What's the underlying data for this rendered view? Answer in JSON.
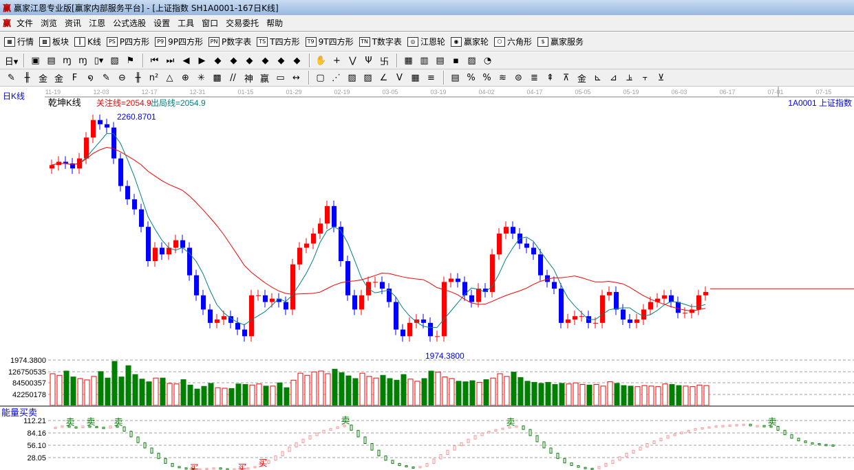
{
  "window": {
    "title": "赢家江恩专业版[赢家内部服务平台] - [上证指数  SH1A0001-167日K线]",
    "logo": "赢"
  },
  "menu": {
    "logo": "赢",
    "items": [
      "文件",
      "浏览",
      "资讯",
      "江恩",
      "公式选股",
      "设置",
      "工具",
      "窗口",
      "交易委托",
      "帮助"
    ]
  },
  "toolbar1": [
    {
      "icon": "grid-table-icon",
      "glyph": "▦",
      "label": "行情"
    },
    {
      "icon": "blocks-icon",
      "glyph": "▩",
      "label": "板块"
    },
    {
      "icon": "candles-icon",
      "glyph": "┃",
      "label": "K线"
    },
    {
      "icon": "ps-icon",
      "glyph": "PS",
      "label": "P四方形"
    },
    {
      "icon": "p9-icon",
      "glyph": "P9",
      "label": "9P四方形"
    },
    {
      "icon": "pn-icon",
      "glyph": "PN",
      "label": "P数字表"
    },
    {
      "icon": "ts-icon",
      "glyph": "TS",
      "label": "T四方形"
    },
    {
      "icon": "t9-icon",
      "glyph": "T9",
      "label": "9T四方形"
    },
    {
      "icon": "tn-icon",
      "glyph": "TN",
      "label": "T数字表"
    },
    {
      "icon": "gann-wheel-icon",
      "glyph": "◎",
      "label": "江恩轮"
    },
    {
      "icon": "winner-wheel-icon",
      "glyph": "◉",
      "label": "赢家轮"
    },
    {
      "icon": "hexagon-icon",
      "glyph": "⬡",
      "label": "六角形"
    },
    {
      "icon": "dollar-icon",
      "glyph": "$",
      "label": "赢家服务"
    }
  ],
  "toolbar2": [
    {
      "icon": "period-day-icon",
      "glyph": "日▾"
    },
    {
      "icon": "sep"
    },
    {
      "icon": "layout-icon",
      "glyph": "▣"
    },
    {
      "icon": "clipboard-icon",
      "glyph": "▤"
    },
    {
      "icon": "chart-3-icon",
      "glyph": "ɱ"
    },
    {
      "icon": "chart-9-icon",
      "glyph": "ɱ"
    },
    {
      "icon": "candle-type-icon",
      "glyph": "▯▾"
    },
    {
      "icon": "map-icon",
      "glyph": "▧"
    },
    {
      "icon": "flag-icon",
      "glyph": "⚑"
    },
    {
      "icon": "sep"
    },
    {
      "icon": "first-icon",
      "glyph": "⏮"
    },
    {
      "icon": "last-icon",
      "glyph": "⏭"
    },
    {
      "icon": "prev-icon",
      "glyph": "◀"
    },
    {
      "icon": "next-icon",
      "glyph": "▶"
    },
    {
      "icon": "left-diamond-icon",
      "glyph": "◆"
    },
    {
      "icon": "right-diamond-icon",
      "glyph": "◆"
    },
    {
      "icon": "expand-h-icon",
      "glyph": "◆"
    },
    {
      "icon": "shrink-icon",
      "glyph": "◆"
    },
    {
      "icon": "expand-v-icon",
      "glyph": "◆"
    },
    {
      "icon": "expand-all-icon",
      "glyph": "◆"
    },
    {
      "icon": "sep"
    },
    {
      "icon": "hand-icon",
      "glyph": "✋"
    },
    {
      "icon": "crosshair-icon",
      "glyph": "+"
    },
    {
      "icon": "draw-line-icon",
      "glyph": "⋁"
    },
    {
      "icon": "formula-icon",
      "glyph": "Ψ"
    },
    {
      "icon": "pattern-icon",
      "glyph": "卐"
    },
    {
      "icon": "sep"
    },
    {
      "icon": "calendar-icon",
      "glyph": "▦"
    },
    {
      "icon": "calculator-icon",
      "glyph": "▥"
    },
    {
      "icon": "book-icon",
      "glyph": "▤"
    },
    {
      "icon": "save-icon",
      "glyph": "▪"
    },
    {
      "icon": "toolbox-icon",
      "glyph": "▨"
    },
    {
      "icon": "pie-icon",
      "glyph": "◔"
    }
  ],
  "toolbar3": [
    {
      "icon": "pen-icon",
      "glyph": "✎"
    },
    {
      "icon": "lines-icon",
      "glyph": "╫"
    },
    {
      "icon": "gold-line-icon",
      "glyph": "金"
    },
    {
      "icon": "gold-line-2-icon",
      "glyph": "金"
    },
    {
      "icon": "f-line-icon",
      "glyph": "F"
    },
    {
      "icon": "spiral-icon",
      "glyph": "໑"
    },
    {
      "icon": "pen-2-icon",
      "glyph": "✎"
    },
    {
      "icon": "circle-icon",
      "glyph": "⊖"
    },
    {
      "icon": "parallel-icon",
      "glyph": "╫"
    },
    {
      "icon": "n2-icon",
      "glyph": "n²"
    },
    {
      "icon": "triangle-icon",
      "glyph": "△"
    },
    {
      "icon": "target-icon",
      "glyph": "⊕"
    },
    {
      "icon": "web-icon",
      "glyph": "✳"
    },
    {
      "icon": "square-web-icon",
      "glyph": "▩"
    },
    {
      "icon": "speed-icon",
      "glyph": "//"
    },
    {
      "icon": "shen-icon",
      "glyph": "神"
    },
    {
      "icon": "ying-icon",
      "glyph": "赢"
    },
    {
      "icon": "ruler-icon",
      "glyph": "▭"
    },
    {
      "icon": "measure-icon",
      "glyph": "↔"
    },
    {
      "icon": "sep"
    },
    {
      "icon": "box-icon",
      "glyph": "▢"
    },
    {
      "icon": "fan-icon",
      "glyph": "⋰"
    },
    {
      "icon": "square-fan-icon",
      "glyph": "▨"
    },
    {
      "icon": "square-fan-2-icon",
      "glyph": "▨"
    },
    {
      "icon": "angle-icon",
      "glyph": "∠"
    },
    {
      "icon": "v-icon",
      "glyph": "V"
    },
    {
      "icon": "grid-icon",
      "glyph": "▦"
    },
    {
      "icon": "eq-icon",
      "glyph": "≡"
    },
    {
      "icon": "sep"
    },
    {
      "icon": "table-icon",
      "glyph": "▤"
    },
    {
      "icon": "percent-line-icon",
      "glyph": "%"
    },
    {
      "icon": "percent-icon",
      "glyph": "%"
    },
    {
      "icon": "icon-a",
      "glyph": "≋"
    },
    {
      "icon": "icon-b",
      "glyph": "⊜"
    },
    {
      "icon": "icon-c",
      "glyph": "≣"
    },
    {
      "icon": "icon-d",
      "glyph": "⇞"
    },
    {
      "icon": "icon-e",
      "glyph": "⊼"
    },
    {
      "icon": "icon-f",
      "glyph": "金"
    },
    {
      "icon": "icon-g",
      "glyph": "⊾"
    },
    {
      "icon": "icon-h",
      "glyph": "⊿"
    },
    {
      "icon": "icon-i",
      "glyph": "⫡"
    },
    {
      "icon": "icon-j",
      "glyph": "⫟"
    },
    {
      "icon": "icon-k",
      "glyph": "⊻"
    }
  ],
  "chart": {
    "period_label": "日K线",
    "indicator_name": "乾坤K线",
    "focus_line": "关注线=2054.9",
    "exit_line": "出局线=2054.9",
    "symbol": "1A0001  上证指数",
    "dates": [
      "11-19",
      "12-03",
      "12-17",
      "12-31",
      "01-15",
      "01-29",
      "02-19",
      "03-05",
      "03-19",
      "04-02",
      "04-17",
      "05-05",
      "05-19",
      "06-03",
      "06-17",
      "07-01",
      "07-15"
    ],
    "high_label": "2260.8701",
    "low_label": "1974.3800",
    "price_range": [
      1974.38,
      2260.87
    ],
    "focus_value": 2054.9,
    "colors": {
      "up": "#ff0000",
      "down": "#0000ff",
      "ma_short": "#008080",
      "ma_long": "#ff0000",
      "vol_down": "#008000",
      "label": "#0000ff"
    }
  },
  "chart_data": {
    "type": "candlestick",
    "closes": [
      2203,
      2207,
      2205,
      2199,
      2211,
      2236,
      2257,
      2252,
      2248,
      2211,
      2178,
      2162,
      2150,
      2129,
      2088,
      2104,
      2096,
      2104,
      2113,
      2104,
      2071,
      2047,
      2030,
      2014,
      2018,
      2022,
      2014,
      2006,
      1998,
      2047,
      2047,
      2039,
      2043,
      2039,
      2030,
      2084,
      2104,
      2109,
      2121,
      2133,
      2154,
      2129,
      2088,
      2047,
      2030,
      2047,
      2063,
      2063,
      2055,
      2039,
      2006,
      1998,
      2014,
      2018,
      2014,
      1998,
      1998,
      2063,
      2067,
      2063,
      2047,
      2039,
      2055,
      2051,
      2096,
      2121,
      2129,
      2121,
      2109,
      2104,
      2096,
      2071,
      2063,
      2055,
      2014,
      2018,
      2022,
      2022,
      2014,
      2014,
      2047,
      2051,
      2030,
      2018,
      2014,
      2018,
      2030,
      2039,
      2043,
      2047,
      2039,
      2026,
      2026,
      2030,
      2047,
      2051
    ],
    "volume": {
      "ticks": [
        "42250178",
        "84500357",
        "126750535",
        "1974.3800"
      ],
      "values": [
        118,
        112,
        128,
        106,
        100,
        95,
        108,
        126,
        102,
        164,
        106,
        148,
        115,
        98,
        88,
        102,
        102,
        82,
        80,
        96,
        76,
        61,
        71,
        82,
        66,
        64,
        63,
        80,
        78,
        76,
        80,
        72,
        72,
        84,
        66,
        94,
        120,
        112,
        125,
        128,
        118,
        135,
        122,
        110,
        100,
        120,
        108,
        102,
        112,
        100,
        94,
        115,
        98,
        90,
        100,
        128,
        124,
        106,
        100,
        90,
        88,
        92,
        86,
        96,
        102,
        118,
        108,
        124,
        104,
        90,
        86,
        82,
        86,
        78,
        82,
        80,
        84,
        78,
        76,
        78,
        72,
        88,
        82,
        74,
        72,
        70,
        74,
        72,
        70,
        80,
        78,
        74,
        72,
        70,
        76,
        74
      ]
    },
    "energy": {
      "name": "能量买卖",
      "ticks": [
        "112.21",
        "84.16",
        "56.10",
        "28.05"
      ],
      "max": 112.21,
      "values": [
        95,
        97,
        100,
        98,
        96,
        100,
        99,
        97,
        95,
        100,
        98,
        88,
        75,
        62,
        50,
        38,
        26,
        15,
        8,
        5,
        4,
        3,
        3,
        4,
        5,
        3,
        2,
        3,
        4,
        5,
        8,
        15,
        22,
        32,
        42,
        52,
        62,
        70,
        78,
        84,
        90,
        94,
        98,
        102,
        90,
        75,
        60,
        45,
        32,
        22,
        15,
        10,
        7,
        5,
        8,
        15,
        25,
        35,
        45,
        55,
        62,
        70,
        78,
        84,
        88,
        92,
        95,
        98,
        100,
        92,
        78,
        64,
        50,
        38,
        26,
        16,
        10,
        6,
        4,
        3,
        8,
        15,
        22,
        30,
        38,
        45,
        52,
        60,
        66,
        72,
        78,
        82,
        86,
        90,
        94,
        96,
        98,
        100,
        101,
        102,
        103,
        104,
        100,
        101,
        100,
        99,
        90,
        80,
        72,
        66,
        62,
        60,
        58,
        57,
        56
      ],
      "signals": [
        {
          "index": 3,
          "label": "卖"
        },
        {
          "index": 6,
          "label": "卖"
        },
        {
          "index": 10,
          "label": "卖"
        },
        {
          "index": 43,
          "label": "卖"
        },
        {
          "index": 67,
          "label": "卖"
        },
        {
          "index": 105,
          "label": "卖"
        },
        {
          "index": 21,
          "label": "买"
        },
        {
          "index": 28,
          "label": "买"
        },
        {
          "index": 31,
          "label": "买"
        }
      ]
    }
  }
}
